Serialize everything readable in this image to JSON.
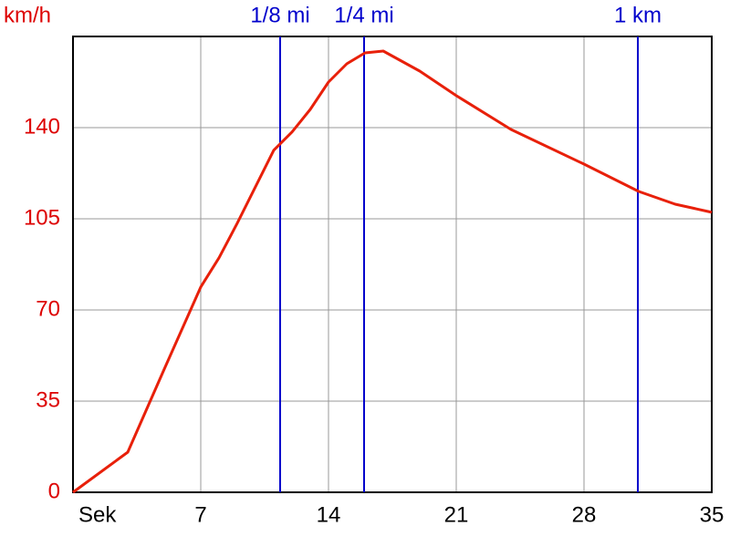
{
  "chart_data": {
    "type": "line",
    "y_label": "km/h",
    "x": [
      0,
      3,
      5,
      7,
      8,
      9,
      11,
      12,
      13,
      14,
      15,
      16,
      17,
      19,
      21,
      24,
      28,
      31,
      33,
      35
    ],
    "values": [
      0,
      15.4,
      47.3,
      78.8,
      90,
      103.3,
      131.3,
      138.3,
      147,
      157.5,
      164.5,
      168.7,
      169.4,
      161.7,
      152.3,
      139.3,
      126,
      115.5,
      110.6,
      107.5
    ],
    "color": "#e8200a",
    "xlim": [
      0,
      35
    ],
    "xticks": [
      {
        "value": 0,
        "label": "Sek"
      },
      7,
      14,
      21,
      28,
      35
    ],
    "ylim": [
      0,
      175
    ],
    "yticks": [
      0,
      35,
      70,
      105,
      140
    ],
    "grid": true,
    "markers": [
      {
        "label": "1/8 mi",
        "x": 11.35
      },
      {
        "label": "1/4 mi",
        "x": 15.95
      },
      {
        "label": "1 km",
        "x": 30.95
      }
    ],
    "marker_color": "#0000cc",
    "ytick_color": "#dd0000"
  }
}
